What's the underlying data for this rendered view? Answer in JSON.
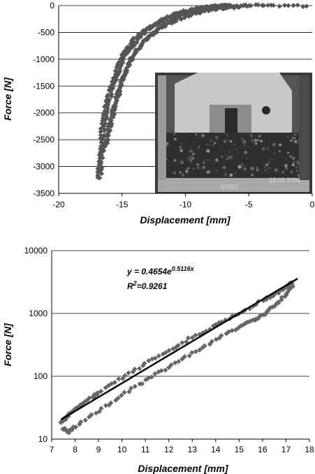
{
  "chart_data": [
    {
      "type": "scatter",
      "title": "",
      "xlabel": "Displacement [mm]",
      "ylabel": "Force [N]",
      "xlim": [
        -20,
        0
      ],
      "ylim": [
        -3500,
        0
      ],
      "xticks": [
        "-20",
        "-15",
        "-10",
        "-5",
        "0"
      ],
      "yticks": [
        "0",
        "-500",
        "-1000",
        "-1500",
        "-2000",
        "-2500",
        "-3000",
        "-3500"
      ],
      "grid": "horizontal",
      "marker_color": "#555555",
      "series": [
        {
          "x": [
            -16.7,
            -16.6,
            -16.5,
            -16.2,
            -15.8,
            -15.3,
            -14.8,
            -14.0,
            -13.0,
            -12.0,
            -11.0,
            -10.0,
            -9.0,
            -8.0,
            -7.5
          ],
          "y": [
            -3200,
            -2800,
            -2400,
            -2000,
            -1600,
            -1250,
            -950,
            -700,
            -450,
            -300,
            -180,
            -100,
            -50,
            -20,
            0
          ]
        },
        {
          "x": [
            -16.2,
            -15.8,
            -15.3,
            -14.8,
            -14.0,
            -13.0,
            -12.0,
            -11.0,
            -10.0,
            -9.0,
            -8.0,
            -7.5,
            -6.5
          ],
          "y": [
            -2600,
            -2150,
            -1700,
            -1300,
            -900,
            -600,
            -400,
            -250,
            -150,
            -80,
            -30,
            -10,
            0
          ]
        },
        {
          "x": [
            -17.0,
            -16.8,
            -16.6,
            -16.3,
            -15.9,
            -15.4,
            -14.8,
            -14.0,
            -13.0,
            -12.0,
            -11.0,
            -10.0,
            -9.0,
            -8.0,
            -7.0,
            -6.0
          ],
          "y": [
            -3200,
            -2800,
            -2300,
            -1900,
            -1500,
            -1150,
            -850,
            -600,
            -420,
            -280,
            -180,
            -110,
            -60,
            -30,
            -10,
            0
          ]
        },
        {
          "x": [
            -16.4,
            -16.0,
            -15.5,
            -15.0,
            -14.2,
            -13.2,
            -12.0,
            -10.5,
            -9.0,
            -7.5,
            -6.0,
            -5.0,
            -3.0,
            0.0
          ],
          "y": [
            -2700,
            -2200,
            -1750,
            -1350,
            -950,
            -650,
            -420,
            -250,
            -130,
            -60,
            -20,
            0,
            0,
            0
          ]
        }
      ]
    },
    {
      "type": "scatter",
      "title": "",
      "xlabel": "Displacement [mm]",
      "ylabel": "Force [N]",
      "xlim": [
        7,
        18
      ],
      "ylim": [
        10,
        10000
      ],
      "yscale": "log",
      "xticks": [
        "7",
        "8",
        "9",
        "10",
        "11",
        "12",
        "13",
        "14",
        "15",
        "16",
        "17",
        "18"
      ],
      "yticks": [
        "10",
        "100",
        "1000",
        "10000"
      ],
      "grid": "horizontal",
      "marker_color": "#666666",
      "fit_color": "#000000",
      "annotation": {
        "eq_main": "y = 0.4654e",
        "eq_exp": "0.5116x",
        "r2_main": "R",
        "r2_sup": "2",
        "r2_rest": "=0.9261"
      },
      "fit": {
        "a": 0.4654,
        "b": 0.5116,
        "x_from": 7.4,
        "x_to": 17.5
      },
      "series": [
        {
          "x": [
            7.4,
            7.6,
            8.0,
            8.5,
            9.0,
            10.0,
            11.0,
            12.0,
            13.0,
            14.0,
            15.0,
            16.0,
            16.5,
            17.0,
            17.3
          ],
          "y": [
            18,
            22,
            30,
            40,
            55,
            95,
            160,
            260,
            420,
            650,
            1000,
            1600,
            2000,
            2600,
            3200
          ]
        },
        {
          "x": [
            7.5,
            7.7,
            8.0,
            9.0,
            10.0,
            11.0,
            12.0,
            13.0,
            14.0,
            15.0,
            15.5,
            16.0,
            16.5,
            17.0,
            17.3
          ],
          "y": [
            15,
            13,
            16,
            28,
            50,
            85,
            140,
            230,
            380,
            600,
            750,
            950,
            1300,
            2000,
            2800
          ]
        }
      ]
    }
  ],
  "photo": {
    "caption": "NORD",
    "date": "18.03.2004"
  }
}
